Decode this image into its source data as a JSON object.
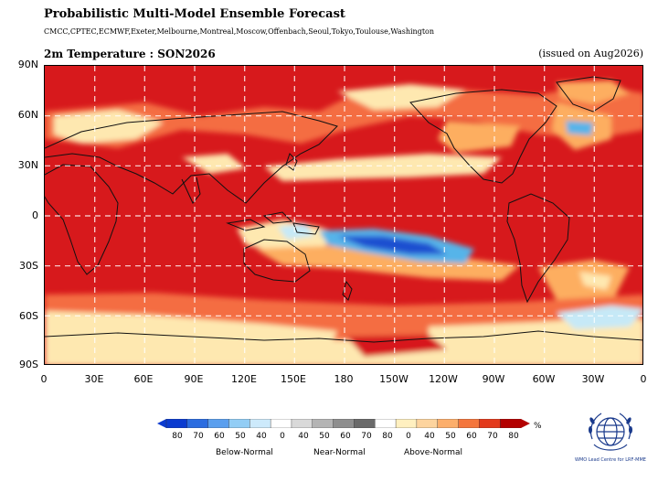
{
  "header": {
    "title": "Probabilistic Multi-Model Ensemble Forecast",
    "centres": "CMCC,CPTEC,ECMWF,Exeter,Melbourne,Montreal,Moscow,Offenbach,Seoul,Tokyo,Toulouse,Washington",
    "subtitle": "2m Temperature : SON2026",
    "issued": "(issued on Aug2026)"
  },
  "map": {
    "lat_labels": [
      "90N",
      "60N",
      "30N",
      "0",
      "30S",
      "60S",
      "90S"
    ],
    "lon_labels": [
      "0",
      "30E",
      "60E",
      "90E",
      "120E",
      "150E",
      "180",
      "150W",
      "120W",
      "90W",
      "60W",
      "30W",
      "0"
    ],
    "grid": "dashed white lines every 30 degrees",
    "colors": {
      "above_high": "#d7191c",
      "above_mid": "#f46d43",
      "above_low": "#fdae61",
      "above_faint": "#fee8b0",
      "below_faint": "#c6e9f7",
      "below_mid": "#56b4e9",
      "below_high": "#1f4fd0"
    }
  },
  "legend": {
    "ticks": [
      "80",
      "70",
      "60",
      "50",
      "40",
      "0",
      "40",
      "50",
      "60",
      "70",
      "80",
      "0",
      "40",
      "50",
      "60",
      "70",
      "80"
    ],
    "percent": "%",
    "categories": [
      "Below-Normal",
      "Near-Normal",
      "Above-Normal"
    ],
    "colors": [
      "#0a3bd0",
      "#2a6ce0",
      "#5a9fee",
      "#92cdf5",
      "#cdeafb",
      "#ffffff",
      "#d9d9d9",
      "#b4b4b4",
      "#8e8e8e",
      "#6a6a6a",
      "#ffffff",
      "#fff0c0",
      "#fdd49e",
      "#fcae6b",
      "#f4763d",
      "#e33a1c",
      "#b30000"
    ]
  },
  "logo": {
    "text": "WMO Lead Centre for LRF-MME"
  }
}
